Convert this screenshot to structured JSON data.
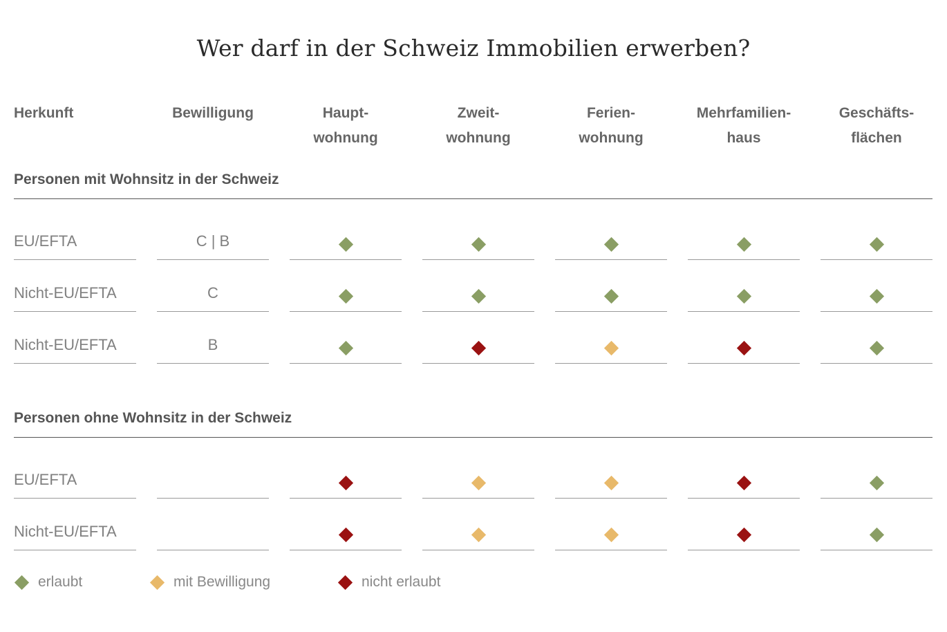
{
  "title": "Wer darf in der Schweiz Immobilien erwerben?",
  "columns": [
    "Herkunft",
    "Bewilligung",
    "Haupt-\nwohnung",
    "Zweit-\nwohnung",
    "Ferien-\nwohnung",
    "Mehrfamilien-\nhaus",
    "Geschäfts-\nflächen"
  ],
  "status_colors": {
    "erlaubt": "#8a9e64",
    "mit_bewilligung": "#e8b96a",
    "nicht_erlaubt": "#9a1212"
  },
  "sections": [
    {
      "label": "Personen mit Wohnsitz in der Schweiz",
      "rows": [
        {
          "herkunft": "EU/EFTA",
          "bewilligung": "C | B",
          "values": [
            "erlaubt",
            "erlaubt",
            "erlaubt",
            "erlaubt",
            "erlaubt"
          ]
        },
        {
          "herkunft": "Nicht-EU/EFTA",
          "bewilligung": "C",
          "values": [
            "erlaubt",
            "erlaubt",
            "erlaubt",
            "erlaubt",
            "erlaubt"
          ]
        },
        {
          "herkunft": "Nicht-EU/EFTA",
          "bewilligung": "B",
          "values": [
            "erlaubt",
            "nicht_erlaubt",
            "mit_bewilligung",
            "nicht_erlaubt",
            "erlaubt"
          ]
        }
      ]
    },
    {
      "label": "Personen ohne Wohnsitz in der Schweiz",
      "rows": [
        {
          "herkunft": "EU/EFTA",
          "bewilligung": "",
          "values": [
            "nicht_erlaubt",
            "mit_bewilligung",
            "mit_bewilligung",
            "nicht_erlaubt",
            "erlaubt"
          ]
        },
        {
          "herkunft": "Nicht-EU/EFTA",
          "bewilligung": "",
          "values": [
            "nicht_erlaubt",
            "mit_bewilligung",
            "mit_bewilligung",
            "nicht_erlaubt",
            "erlaubt"
          ]
        }
      ]
    }
  ],
  "legend": [
    {
      "key": "erlaubt",
      "label": "erlaubt"
    },
    {
      "key": "mit_bewilligung",
      "label": "mit Bewilligung"
    },
    {
      "key": "nicht_erlaubt",
      "label": "nicht erlaubt"
    }
  ]
}
